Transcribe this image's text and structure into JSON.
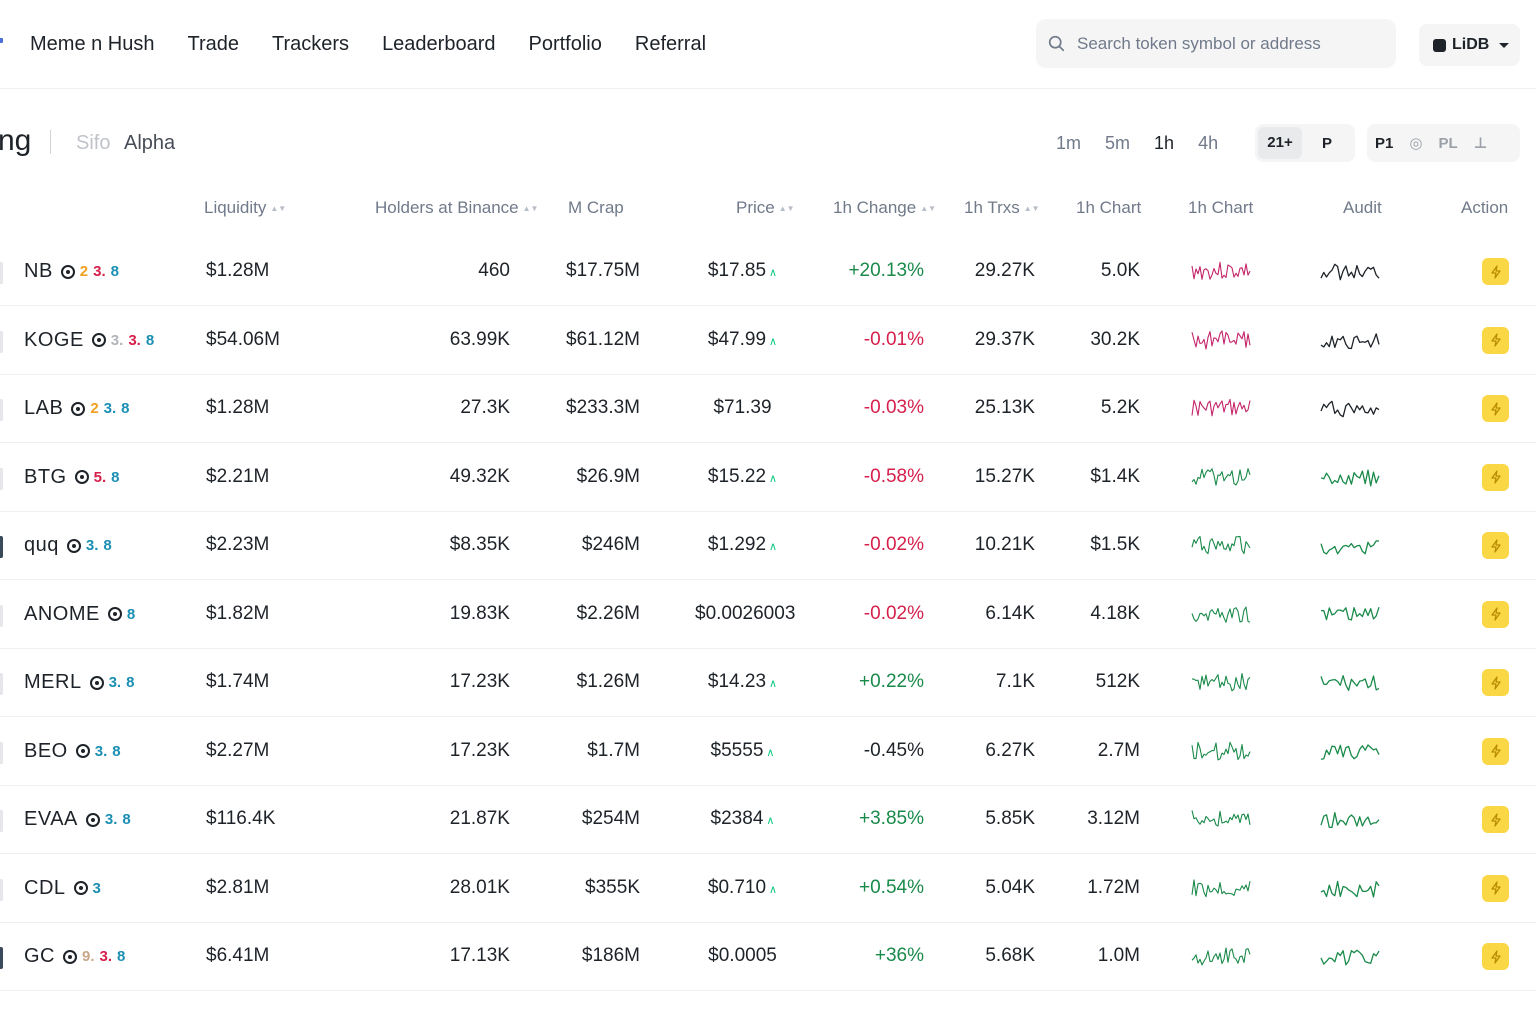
{
  "nav": {
    "items": [
      "Meme n Hush",
      "Trade",
      "Trackers",
      "Leaderboard",
      "Portfolio",
      "Referral"
    ],
    "search_placeholder": "Search token symbol or address",
    "chain_label": "LiDB"
  },
  "section": {
    "title": "ng",
    "tabs": [
      "Sifo",
      "Alpha"
    ],
    "timeframes": [
      "1m",
      "5m",
      "1h",
      "4h"
    ],
    "active_timeframe": "1h",
    "filter_group_1": [
      "21+",
      "P"
    ],
    "filter_group_2": [
      "P1",
      "◎",
      "PL",
      "⊥"
    ]
  },
  "table": {
    "headers": {
      "liquidity": "Liquidity",
      "holders": "Holders at Binance",
      "mcap": "M Crap",
      "price": "Price",
      "change": "1h Change",
      "trxs": "1h Trxs",
      "chart1": "1h Chart",
      "chart2": "1h Chart",
      "audit": "Audit",
      "action": "Action"
    },
    "rows": [
      {
        "symbol": "NB",
        "badges": [
          "2",
          "3.",
          "8"
        ],
        "badge_colors": [
          "#f0a020",
          "#d6204c",
          "#1b8fb3"
        ],
        "liquidity": "$1.28M",
        "holders": "460",
        "mcap": "$17.75M",
        "price": "$17.85",
        "price_up": true,
        "change": "+20.13%",
        "change_dir": "pos",
        "trxs": "29.27K",
        "vol": "5.0K",
        "spark_color": "#c4246a",
        "edge": "light"
      },
      {
        "symbol": "KOGE",
        "badges": [
          "3.",
          "3.",
          "8"
        ],
        "badge_colors": [
          "#b0b4ba",
          "#d6204c",
          "#1b8fb3"
        ],
        "liquidity": "$54.06M",
        "holders": "63.99K",
        "mcap": "$61.12M",
        "price": "$47.99",
        "price_up": true,
        "change": "-0.01%",
        "change_dir": "neg",
        "trxs": "29.37K",
        "vol": "30.2K",
        "spark_color": "#c4246a",
        "edge": "light"
      },
      {
        "symbol": "LAB",
        "badges": [
          "2",
          "3.",
          "8"
        ],
        "badge_colors": [
          "#f0a020",
          "#1b8fb3",
          "#1b8fb3"
        ],
        "liquidity": "$1.28M",
        "holders": "27.3K",
        "mcap": "$233.3M",
        "price": "$71.39",
        "price_up": false,
        "change": "-0.03%",
        "change_dir": "neg",
        "trxs": "25.13K",
        "vol": "5.2K",
        "spark_color": "#c4246a",
        "edge": "light"
      },
      {
        "symbol": "BTG",
        "badges": [
          "5.",
          "8"
        ],
        "badge_colors": [
          "#d6204c",
          "#1b8fb3"
        ],
        "liquidity": "$2.21M",
        "holders": "49.32K",
        "mcap": "$26.9M",
        "price": "$15.22",
        "price_up": true,
        "change": "-0.58%",
        "change_dir": "neg",
        "trxs": "15.27K",
        "vol": "$1.4K",
        "spark_color": "#1a8a4a",
        "edge": "light"
      },
      {
        "symbol": "quq",
        "badges": [
          "3.",
          "8"
        ],
        "badge_colors": [
          "#1b8fb3",
          "#1b8fb3"
        ],
        "liquidity": "$2.23M",
        "holders": "$8.35K",
        "mcap": "$246M",
        "price": "$1.292",
        "price_up": true,
        "change": "-0.02%",
        "change_dir": "neg",
        "trxs": "10.21K",
        "vol": "$1.5K",
        "spark_color": "#1a8a4a",
        "edge": "dark"
      },
      {
        "symbol": "ANOME",
        "badges": [
          "8"
        ],
        "badge_colors": [
          "#1b8fb3"
        ],
        "liquidity": "$1.82M",
        "holders": "19.83K",
        "mcap": "$2.26M",
        "price": "$0.0026003",
        "price_up": false,
        "change": "-0.02%",
        "change_dir": "neg",
        "trxs": "6.14K",
        "vol": "4.18K",
        "spark_color": "#1a8a4a",
        "edge": "light"
      },
      {
        "symbol": "MERL",
        "badges": [
          "3.",
          "8"
        ],
        "badge_colors": [
          "#1b8fb3",
          "#1b8fb3"
        ],
        "liquidity": "$1.74M",
        "holders": "17.23K",
        "mcap": "$1.26M",
        "price": "$14.23",
        "price_up": true,
        "change": "+0.22%",
        "change_dir": "pos",
        "trxs": "7.1K",
        "vol": "512K",
        "spark_color": "#1a8a4a",
        "edge": "light"
      },
      {
        "symbol": "BEO",
        "badges": [
          "3.",
          "8"
        ],
        "badge_colors": [
          "#1b8fb3",
          "#1b8fb3"
        ],
        "liquidity": "$2.27M",
        "holders": "17.23K",
        "mcap": "$1.7M",
        "price": "$5555",
        "price_up": true,
        "change": "-0.45%",
        "change_dir": "neu",
        "trxs": "6.27K",
        "vol": "2.7M",
        "spark_color": "#1a8a4a",
        "edge": "light"
      },
      {
        "symbol": "EVAA",
        "badges": [
          "3.",
          "8"
        ],
        "badge_colors": [
          "#1b8fb3",
          "#1b8fb3"
        ],
        "liquidity": "$116.4K",
        "holders": "21.87K",
        "mcap": "$254M",
        "price": "$2384",
        "price_up": true,
        "change": "+3.85%",
        "change_dir": "pos",
        "trxs": "5.85K",
        "vol": "3.12M",
        "spark_color": "#1a8a4a",
        "edge": "light"
      },
      {
        "symbol": "CDL",
        "badges": [
          "3"
        ],
        "badge_colors": [
          "#1b8fb3"
        ],
        "liquidity": "$2.81M",
        "holders": "28.01K",
        "mcap": "$355K",
        "price": "$0.710",
        "price_up": true,
        "change": "+0.54%",
        "change_dir": "pos",
        "trxs": "5.04K",
        "vol": "1.72M",
        "spark_color": "#1a8a4a",
        "edge": "light"
      },
      {
        "symbol": "GC",
        "badges": [
          "9.",
          "3.",
          "8"
        ],
        "badge_colors": [
          "#c9a88a",
          "#d6204c",
          "#1b8fb3"
        ],
        "liquidity": "$6.41M",
        "holders": "17.13K",
        "mcap": "$186M",
        "price": "$0.0005",
        "price_up": false,
        "change": "+36%",
        "change_dir": "pos",
        "trxs": "5.68K",
        "vol": "1.0M",
        "spark_color": "#1a8a4a",
        "edge": "dark"
      }
    ]
  },
  "colors": {
    "accent_yellow": "#f9d745",
    "positive": "#1a8a4a",
    "negative": "#d6204c",
    "sparkline_pink": "#c4246a",
    "sparkline_green": "#1a8a4a"
  },
  "icons": {
    "search": "search-icon",
    "chain": "chain-icon",
    "action": "lightning-icon",
    "verified": "target-ring-icon"
  }
}
